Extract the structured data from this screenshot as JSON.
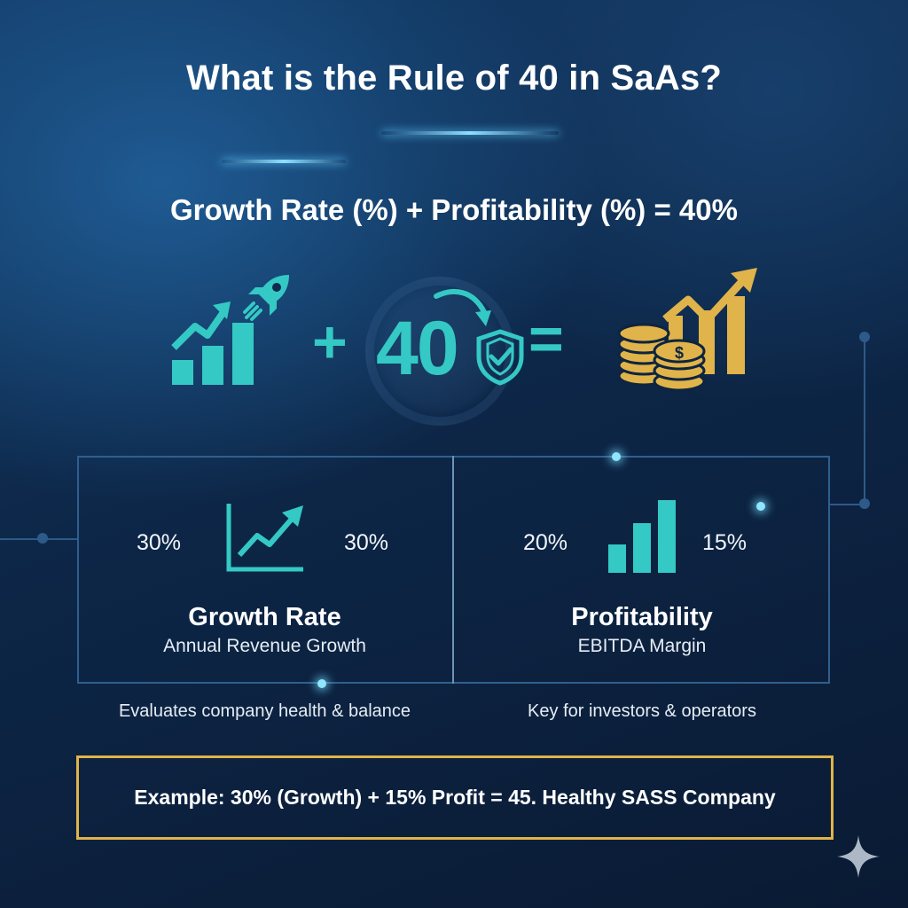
{
  "title": "What is the Rule of 40 in SaAs?",
  "formula": "Growth Rate (%) + Profitability (%) = 40%",
  "equation": {
    "plus": "+",
    "value": "40",
    "equals": "="
  },
  "growth_card": {
    "left_value": "30%",
    "right_value": "30%",
    "title": "Growth Rate",
    "subtitle": "Annual Revenue Growth",
    "caption": "Evaluates company health & balance"
  },
  "profit_card": {
    "left_value": "20%",
    "right_value": "15%",
    "title": "Profitability",
    "subtitle": "EBITDA Margin",
    "caption": "Key for investors & operators"
  },
  "example": "Example: 30% (Growth) + 15% Profit = 45. Healthy SASS Company",
  "icons": {
    "growth": "bar-chart-arrow-icon",
    "rocket": "rocket-icon",
    "shield": "shield-check-icon",
    "money": "coins-chart-icon",
    "line_chart": "line-chart-icon",
    "bar_chart": "bar-chart-icon",
    "sparkle": "sparkle-icon"
  },
  "colors": {
    "accent_teal": "#34c9c4",
    "accent_gold": "#e0b44a",
    "background_dark": "#0a1a33"
  }
}
